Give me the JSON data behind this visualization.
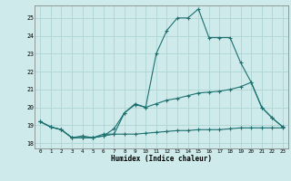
{
  "xlabel": "Humidex (Indice chaleur)",
  "xlim": [
    -0.5,
    23.5
  ],
  "ylim": [
    17.7,
    25.7
  ],
  "yticks": [
    18,
    19,
    20,
    21,
    22,
    23,
    24,
    25
  ],
  "xticks": [
    0,
    1,
    2,
    3,
    4,
    5,
    6,
    7,
    8,
    9,
    10,
    11,
    12,
    13,
    14,
    15,
    16,
    17,
    18,
    19,
    20,
    21,
    22,
    23
  ],
  "xtick_labels": [
    "0",
    "1",
    "2",
    "3",
    "4",
    "5",
    "6",
    "7",
    "8",
    "9",
    "10",
    "11",
    "12",
    "13",
    "14",
    "15",
    "16",
    "17",
    "18",
    "19",
    "20",
    "21",
    "22",
    "23"
  ],
  "background_color": "#ceeaea",
  "grid_color": "#aed4d4",
  "line_color": "#1c7070",
  "line1_x": [
    0,
    1,
    2,
    3,
    4,
    5,
    6,
    7,
    8,
    9,
    10,
    11,
    12,
    13,
    14,
    15,
    16,
    17,
    18,
    19,
    20,
    21,
    22,
    23
  ],
  "line1_y": [
    19.2,
    18.9,
    18.75,
    18.3,
    18.4,
    18.3,
    18.5,
    18.5,
    19.7,
    20.2,
    20.0,
    23.0,
    24.3,
    25.0,
    25.0,
    25.5,
    23.9,
    23.9,
    23.9,
    22.5,
    21.4,
    20.0,
    19.4,
    18.9
  ],
  "line2_x": [
    0,
    1,
    2,
    3,
    4,
    5,
    6,
    7,
    8,
    9,
    10,
    11,
    12,
    13,
    14,
    15,
    16,
    17,
    18,
    19,
    20,
    21,
    22,
    23
  ],
  "line2_y": [
    19.2,
    18.9,
    18.75,
    18.3,
    18.3,
    18.3,
    18.4,
    18.8,
    19.7,
    20.15,
    20.0,
    20.2,
    20.4,
    20.5,
    20.65,
    20.8,
    20.85,
    20.9,
    21.0,
    21.15,
    21.4,
    20.0,
    19.4,
    18.9
  ],
  "line3_x": [
    0,
    1,
    2,
    3,
    4,
    5,
    6,
    7,
    8,
    9,
    10,
    11,
    12,
    13,
    14,
    15,
    16,
    17,
    18,
    19,
    20,
    21,
    22,
    23
  ],
  "line3_y": [
    19.2,
    18.9,
    18.75,
    18.3,
    18.3,
    18.3,
    18.4,
    18.5,
    18.5,
    18.5,
    18.55,
    18.6,
    18.65,
    18.7,
    18.7,
    18.75,
    18.75,
    18.75,
    18.8,
    18.85,
    18.85,
    18.85,
    18.85,
    18.85
  ]
}
